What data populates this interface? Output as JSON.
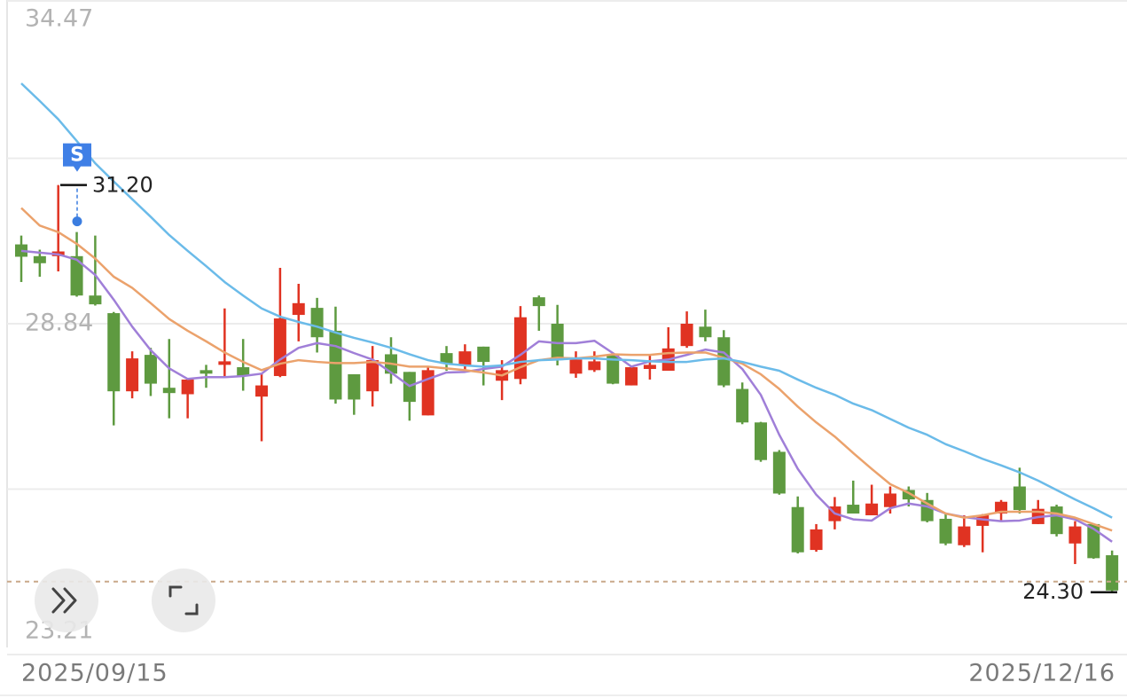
{
  "chart_data": {
    "type": "candlestick",
    "categories": [
      "2025/09/15",
      null,
      null,
      null,
      null,
      null,
      null,
      null,
      null,
      null,
      null,
      null,
      null,
      null,
      null,
      null,
      null,
      null,
      null,
      null,
      null,
      null,
      null,
      null,
      null,
      null,
      null,
      null,
      null,
      null,
      null,
      null,
      null,
      null,
      null,
      null,
      null,
      null,
      null,
      null,
      null,
      null,
      null,
      null,
      null,
      null,
      null,
      null,
      null,
      null,
      null,
      null,
      null,
      null,
      null,
      null,
      null,
      null,
      null,
      "2025/12/16"
    ],
    "open": [
      30.19,
      29.99,
      29.99,
      29.99,
      29.32,
      29.02,
      27.69,
      28.31,
      27.75,
      27.64,
      28.05,
      28.14,
      28.1,
      27.6,
      27.95,
      28.99,
      29.11,
      28.72,
      27.98,
      27.69,
      28.32,
      28.02,
      27.28,
      28.34,
      28.14,
      28.45,
      27.87,
      27.9,
      29.29,
      28.84,
      27.99,
      28.05,
      28.31,
      27.79,
      28.07,
      28.04,
      28.46,
      28.79,
      28.61,
      27.73,
      27.16,
      26.66,
      25.72,
      24.99,
      25.48,
      25.76,
      25.58,
      25.72,
      26.01,
      25.84,
      25.52,
      25.07,
      25.4,
      25.61,
      26.07,
      25.43,
      25.73,
      25.1,
      25.43,
      24.9
    ],
    "high": [
      30.34,
      30.1,
      31.2,
      30.4,
      30.34,
      29.04,
      28.37,
      28.43,
      28.58,
      27.89,
      28.14,
      29.1,
      28.58,
      27.99,
      29.79,
      29.52,
      29.28,
      29.13,
      27.98,
      28.46,
      28.61,
      28.02,
      28.1,
      28.46,
      28.49,
      28.45,
      28.22,
      29.14,
      29.32,
      29.16,
      28.37,
      28.37,
      28.31,
      28.11,
      28.32,
      28.78,
      29.05,
      29.08,
      28.73,
      27.84,
      27.17,
      26.69,
      25.9,
      25.43,
      25.89,
      26.17,
      26.1,
      26.07,
      26.07,
      25.96,
      25.6,
      25.58,
      25.6,
      25.84,
      26.39,
      25.84,
      25.76,
      25.48,
      25.43,
      24.98
    ],
    "low": [
      29.55,
      29.64,
      29.73,
      29.3,
      29.15,
      27.11,
      27.57,
      27.61,
      27.23,
      27.23,
      27.75,
      27.95,
      27.7,
      26.84,
      27.93,
      28.54,
      28.35,
      27.48,
      27.29,
      27.43,
      27.82,
      27.19,
      27.28,
      28.04,
      28.01,
      27.79,
      27.54,
      27.81,
      28.72,
      28.13,
      27.92,
      28.02,
      27.81,
      27.79,
      27.89,
      28.04,
      28.43,
      28.54,
      27.76,
      27.13,
      26.49,
      25.93,
      24.93,
      24.96,
      25.34,
      25.61,
      25.58,
      25.61,
      25.73,
      25.46,
      25.07,
      25.04,
      24.95,
      25.49,
      25.61,
      25.43,
      25.22,
      24.75,
      24.84,
      24.28
    ],
    "close": [
      29.98,
      29.87,
      30.07,
      29.32,
      29.17,
      27.69,
      28.25,
      27.82,
      27.66,
      27.89,
      27.99,
      28.2,
      27.95,
      27.79,
      28.93,
      29.19,
      28.61,
      27.55,
      27.55,
      28.22,
      27.99,
      27.51,
      28.05,
      28.16,
      28.37,
      28.19,
      28.05,
      28.95,
      29.14,
      28.26,
      28.23,
      28.2,
      27.82,
      28.1,
      28.14,
      28.42,
      28.84,
      28.61,
      27.79,
      27.16,
      26.52,
      25.95,
      24.95,
      25.34,
      25.73,
      25.61,
      25.78,
      25.95,
      25.85,
      25.48,
      25.1,
      25.39,
      25.58,
      25.81,
      25.67,
      25.69,
      25.26,
      25.39,
      24.85,
      24.3
    ],
    "up_color": "#e03322",
    "down_color": "#5e9a40",
    "series": [
      {
        "color": "#a07fd8",
        "values": [
          30.08,
          30.05,
          30.02,
          29.93,
          29.67,
          29.25,
          28.79,
          28.39,
          28.08,
          27.9,
          27.93,
          27.93,
          27.95,
          27.99,
          28.23,
          28.43,
          28.51,
          28.46,
          28.34,
          28.23,
          28.01,
          27.78,
          27.9,
          28.01,
          28.02,
          28.07,
          28.11,
          28.31,
          28.54,
          28.51,
          28.51,
          28.55,
          28.34,
          28.11,
          28.2,
          28.23,
          28.31,
          28.4,
          28.35,
          28.07,
          27.63,
          26.95,
          26.37,
          25.93,
          25.61,
          25.51,
          25.49,
          25.7,
          25.78,
          25.73,
          25.61,
          25.55,
          25.51,
          25.48,
          25.49,
          25.55,
          25.58,
          25.51,
          25.35,
          25.13
        ]
      },
      {
        "color": "#eba26c",
        "values": [
          30.81,
          30.51,
          30.4,
          30.2,
          29.95,
          29.64,
          29.45,
          29.19,
          28.92,
          28.72,
          28.54,
          28.35,
          28.19,
          28.05,
          28.16,
          28.22,
          28.19,
          28.17,
          28.17,
          28.19,
          28.16,
          28.11,
          28.11,
          28.08,
          28.05,
          28.01,
          27.96,
          28.1,
          28.22,
          28.26,
          28.25,
          28.28,
          28.32,
          28.31,
          28.31,
          28.34,
          28.35,
          28.35,
          28.26,
          28.16,
          27.98,
          27.73,
          27.43,
          27.16,
          26.92,
          26.64,
          26.37,
          26.11,
          25.96,
          25.78,
          25.61,
          25.54,
          25.58,
          25.64,
          25.64,
          25.64,
          25.61,
          25.54,
          25.43,
          25.32
        ]
      },
      {
        "color": "#6bbbe9",
        "values": [
          32.93,
          32.63,
          32.32,
          31.95,
          31.57,
          31.26,
          30.96,
          30.66,
          30.35,
          30.08,
          29.82,
          29.55,
          29.32,
          29.1,
          28.96,
          28.87,
          28.79,
          28.69,
          28.6,
          28.52,
          28.43,
          28.32,
          28.22,
          28.16,
          28.13,
          28.11,
          28.13,
          28.19,
          28.22,
          28.23,
          28.25,
          28.25,
          28.23,
          28.22,
          28.2,
          28.19,
          28.19,
          28.23,
          28.25,
          28.19,
          28.11,
          28.04,
          27.89,
          27.75,
          27.63,
          27.48,
          27.37,
          27.22,
          27.07,
          26.95,
          26.79,
          26.67,
          26.54,
          26.43,
          26.31,
          26.17,
          26.01,
          25.85,
          25.7,
          25.54
        ]
      }
    ],
    "ylim": [
      23.21,
      34.47
    ],
    "yticks": [
      34.47,
      {
        "value": 31.655,
        "label": null
      },
      28.84,
      {
        "value": 26.025,
        "label": null
      },
      23.21
    ],
    "grid": true,
    "high_label": {
      "value": 31.2,
      "label": "31.20"
    },
    "last_label": {
      "value": 24.3,
      "label": "24.30"
    },
    "marker_text": "S"
  }
}
